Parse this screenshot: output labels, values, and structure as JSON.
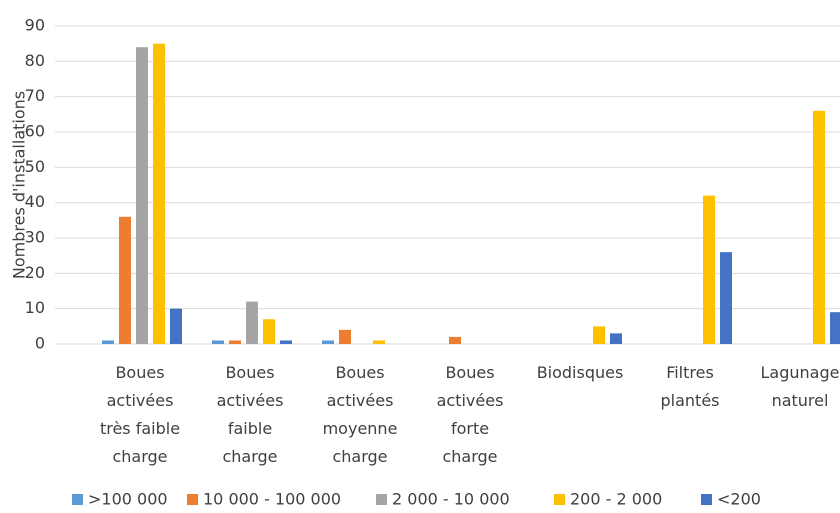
{
  "chart_data": {
    "type": "bar",
    "y_label": "Nombres d'installations",
    "categories": [
      "Boues activées très faible charge",
      "Boues activées faible charge",
      "Boues activées moyenne charge",
      "Boues activées forte charge",
      "Biodisques",
      "Filtres plantés",
      "Lagunage naturel"
    ],
    "series": [
      {
        "name": ">100 000",
        "color": "#5b9bd5",
        "values": [
          1,
          1,
          1,
          0,
          0,
          0,
          0
        ]
      },
      {
        "name": "10 000 - 100 000",
        "color": "#ed7d31",
        "values": [
          36,
          1,
          4,
          2,
          0,
          0,
          0
        ]
      },
      {
        "name": "2 000 - 10 000",
        "color": "#a5a5a5",
        "values": [
          84,
          12,
          0,
          0,
          0,
          0,
          0
        ]
      },
      {
        "name": "200 - 2 000",
        "color": "#ffc000",
        "values": [
          85,
          7,
          1,
          0,
          5,
          42,
          66
        ]
      },
      {
        "name": "<200",
        "color": "#4472c4",
        "values": [
          10,
          1,
          0,
          0,
          3,
          26,
          9
        ]
      }
    ],
    "ylim": [
      0,
      90
    ],
    "yticks": [
      0,
      10,
      20,
      30,
      40,
      50,
      60,
      70,
      80,
      90
    ],
    "grid": true,
    "legend": "bottom"
  }
}
